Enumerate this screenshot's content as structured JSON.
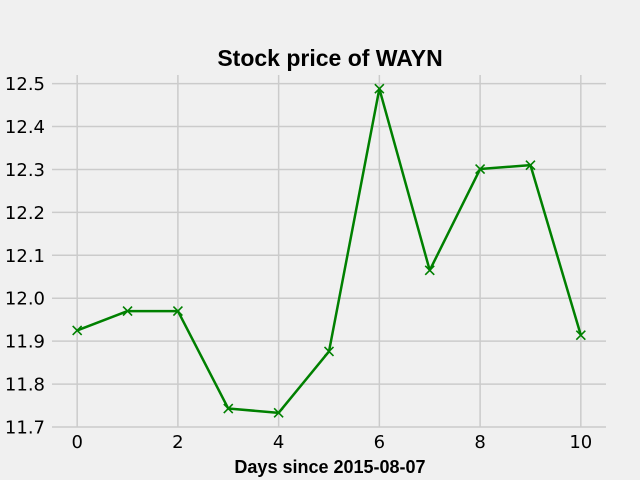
{
  "chart_data": {
    "type": "line",
    "title": "Stock price of WAYN",
    "xlabel": "Days since 2015-08-07",
    "ylabel": "",
    "x": [
      0,
      1,
      2,
      3,
      4,
      5,
      6,
      7,
      8,
      9,
      10
    ],
    "series": [
      {
        "values": [
          11.925,
          11.97,
          11.97,
          11.743,
          11.733,
          11.876,
          12.488,
          12.065,
          12.301,
          12.31,
          11.914
        ],
        "color": "#008000",
        "marker": "x"
      }
    ],
    "xlim": [
      -0.5,
      10.5
    ],
    "ylim": [
      11.7,
      12.52
    ],
    "xticks": [
      0,
      2,
      4,
      6,
      8,
      10
    ],
    "xtick_labels": [
      "0",
      "2",
      "4",
      "6",
      "8",
      "10"
    ],
    "yticks": [
      11.7,
      11.8,
      11.9,
      12.0,
      12.1,
      12.2,
      12.3,
      12.4,
      12.5
    ],
    "ytick_labels": [
      "11.7",
      "11.8",
      "11.9",
      "12.0",
      "12.1",
      "12.2",
      "12.3",
      "12.4",
      "12.5"
    ],
    "grid": true,
    "background": "#f0f0f0",
    "grid_color": "#cbcbcb"
  }
}
